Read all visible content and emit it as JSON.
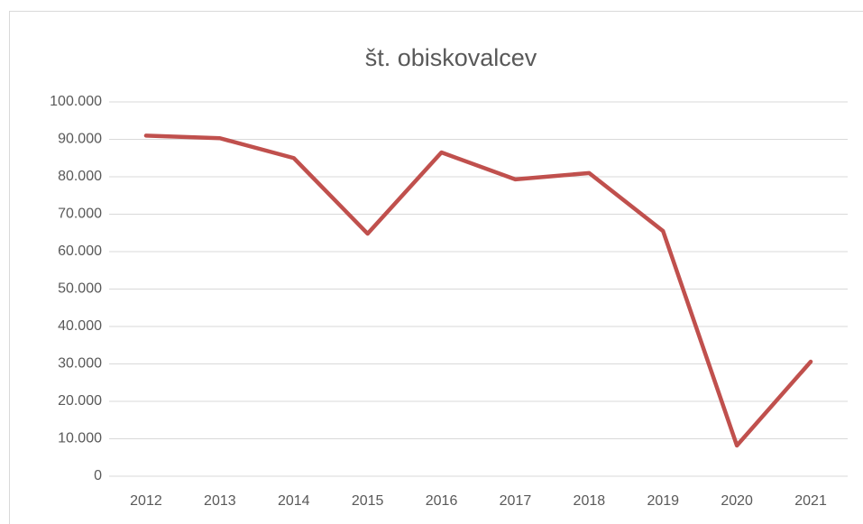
{
  "chart_data": {
    "type": "line",
    "title": "št. obiskovalcev",
    "categories": [
      "2012",
      "2013",
      "2014",
      "2015",
      "2016",
      "2017",
      "2018",
      "2019",
      "2020",
      "2021"
    ],
    "series": [
      {
        "name": "št. obiskovalcev",
        "color": "#c0504d",
        "values": [
          91000,
          90300,
          85000,
          64800,
          86500,
          79300,
          81000,
          65500,
          8200,
          30600
        ]
      }
    ],
    "ylim": [
      0,
      100000
    ],
    "yticks": [
      0,
      {
        "value": 10000,
        "label": "10.000"
      },
      {
        "value": 20000,
        "label": "20.000"
      },
      {
        "value": 30000,
        "label": "30.000"
      },
      {
        "value": 40000,
        "label": "40.000"
      },
      {
        "value": 50000,
        "label": "50.000"
      },
      {
        "value": 60000,
        "label": "60.000"
      },
      {
        "value": 70000,
        "label": "70.000"
      },
      {
        "value": 80000,
        "label": "80.000"
      },
      {
        "value": 90000,
        "label": "90.000"
      },
      {
        "value": 100000,
        "label": "100.000"
      }
    ],
    "grid": true
  }
}
